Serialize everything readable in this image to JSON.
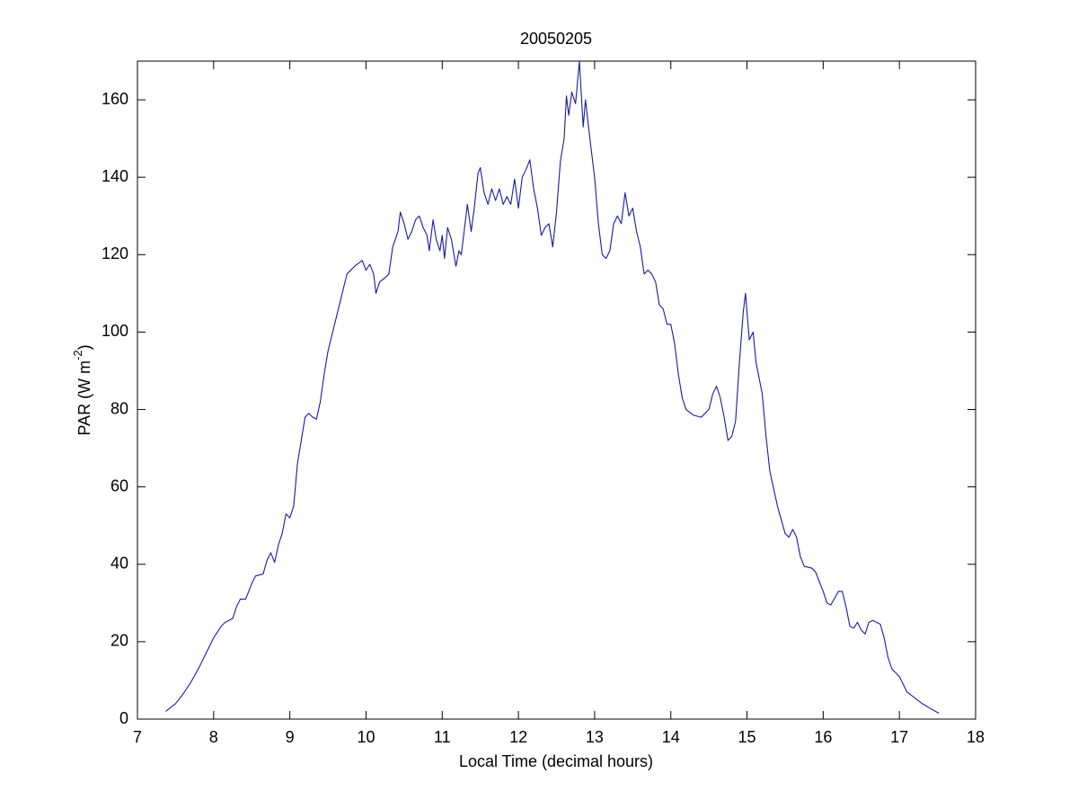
{
  "chart_data": {
    "type": "line",
    "title": "20050205",
    "x_label": "Local Time (decimal hours)",
    "y_label": [
      "PAR (W m",
      "-2",
      ")"
    ],
    "color": "#1a1aa0",
    "xlim": [
      7,
      18
    ],
    "xticks": [
      7,
      8,
      9,
      10,
      11,
      12,
      13,
      14,
      15,
      16,
      17,
      18
    ],
    "ylim": [
      0,
      170
    ],
    "yticks": [
      0,
      20,
      40,
      60,
      80,
      100,
      120,
      140,
      160
    ],
    "grid": false,
    "x": [
      7.37,
      7.5,
      7.6,
      7.7,
      7.8,
      7.9,
      8.0,
      8.1,
      8.15,
      8.25,
      8.3,
      8.35,
      8.42,
      8.5,
      8.55,
      8.65,
      8.7,
      8.75,
      8.8,
      8.85,
      8.9,
      8.95,
      9.0,
      9.05,
      9.1,
      9.15,
      9.2,
      9.25,
      9.3,
      9.35,
      9.4,
      9.45,
      9.5,
      9.6,
      9.7,
      9.75,
      9.85,
      9.95,
      10.0,
      10.05,
      10.1,
      10.13,
      10.18,
      10.25,
      10.3,
      10.35,
      10.42,
      10.45,
      10.5,
      10.55,
      10.6,
      10.65,
      10.7,
      10.75,
      10.8,
      10.83,
      10.88,
      10.92,
      10.97,
      11.0,
      11.03,
      11.07,
      11.12,
      11.18,
      11.22,
      11.25,
      11.3,
      11.33,
      11.38,
      11.42,
      11.47,
      11.5,
      11.55,
      11.6,
      11.65,
      11.7,
      11.75,
      11.8,
      11.85,
      11.9,
      11.95,
      12.0,
      12.05,
      12.1,
      12.15,
      12.2,
      12.25,
      12.3,
      12.35,
      12.4,
      12.45,
      12.5,
      12.55,
      12.6,
      12.63,
      12.66,
      12.7,
      12.75,
      12.8,
      12.85,
      12.88,
      12.95,
      13.0,
      13.05,
      13.1,
      13.15,
      13.2,
      13.25,
      13.3,
      13.35,
      13.4,
      13.45,
      13.5,
      13.55,
      13.6,
      13.65,
      13.7,
      13.75,
      13.8,
      13.85,
      13.9,
      13.95,
      14.0,
      14.05,
      14.1,
      14.15,
      14.2,
      14.3,
      14.4,
      14.5,
      14.55,
      14.6,
      14.65,
      14.7,
      14.75,
      14.8,
      14.85,
      14.9,
      14.95,
      14.98,
      15.03,
      15.08,
      15.12,
      15.2,
      15.25,
      15.3,
      15.4,
      15.5,
      15.55,
      15.6,
      15.65,
      15.7,
      15.75,
      15.85,
      15.9,
      16.0,
      16.05,
      16.1,
      16.2,
      16.25,
      16.3,
      16.35,
      16.4,
      16.45,
      16.5,
      16.55,
      16.6,
      16.65,
      16.75,
      16.8,
      16.85,
      16.9,
      17.0,
      17.1,
      17.2,
      17.3,
      17.4,
      17.52
    ],
    "values": [
      2,
      4,
      6.5,
      9.5,
      13,
      17,
      21,
      24,
      25,
      26,
      29,
      31,
      31,
      35,
      37,
      37.5,
      41,
      43,
      40.5,
      45,
      48,
      53,
      52,
      55,
      66,
      72,
      78,
      79,
      78,
      77.5,
      82,
      89,
      95,
      103,
      111,
      115,
      117,
      118.5,
      116,
      117.5,
      115,
      110,
      113,
      114,
      115,
      122,
      126,
      131,
      128,
      124,
      126,
      129,
      130,
      127,
      125,
      121,
      129,
      124,
      121,
      125,
      119,
      127,
      124,
      117,
      121,
      120,
      128,
      133,
      126,
      132,
      141,
      142.5,
      136,
      133,
      137,
      134,
      137,
      133,
      135,
      133,
      139.5,
      132,
      140,
      142,
      144.5,
      137,
      132,
      125,
      127,
      128,
      122,
      131,
      144,
      150,
      161,
      156,
      162,
      159,
      170,
      153,
      160,
      148,
      140,
      128,
      120,
      119,
      121,
      128,
      130,
      128,
      136,
      130,
      132,
      126,
      122,
      115,
      116,
      115,
      113,
      107,
      106,
      102,
      102,
      97,
      89,
      83,
      80,
      78.5,
      78,
      80,
      84,
      86,
      83,
      78,
      72,
      73,
      77,
      92,
      105,
      110,
      98,
      100,
      92,
      84,
      73,
      64,
      55,
      48,
      47,
      49,
      47,
      42,
      39.5,
      39,
      38,
      33,
      30,
      29.5,
      33,
      33,
      29,
      24,
      23.5,
      25,
      23,
      22,
      25,
      25.5,
      24.5,
      21,
      16,
      13,
      11,
      7,
      5.5,
      4,
      2.8,
      1.5
    ]
  }
}
